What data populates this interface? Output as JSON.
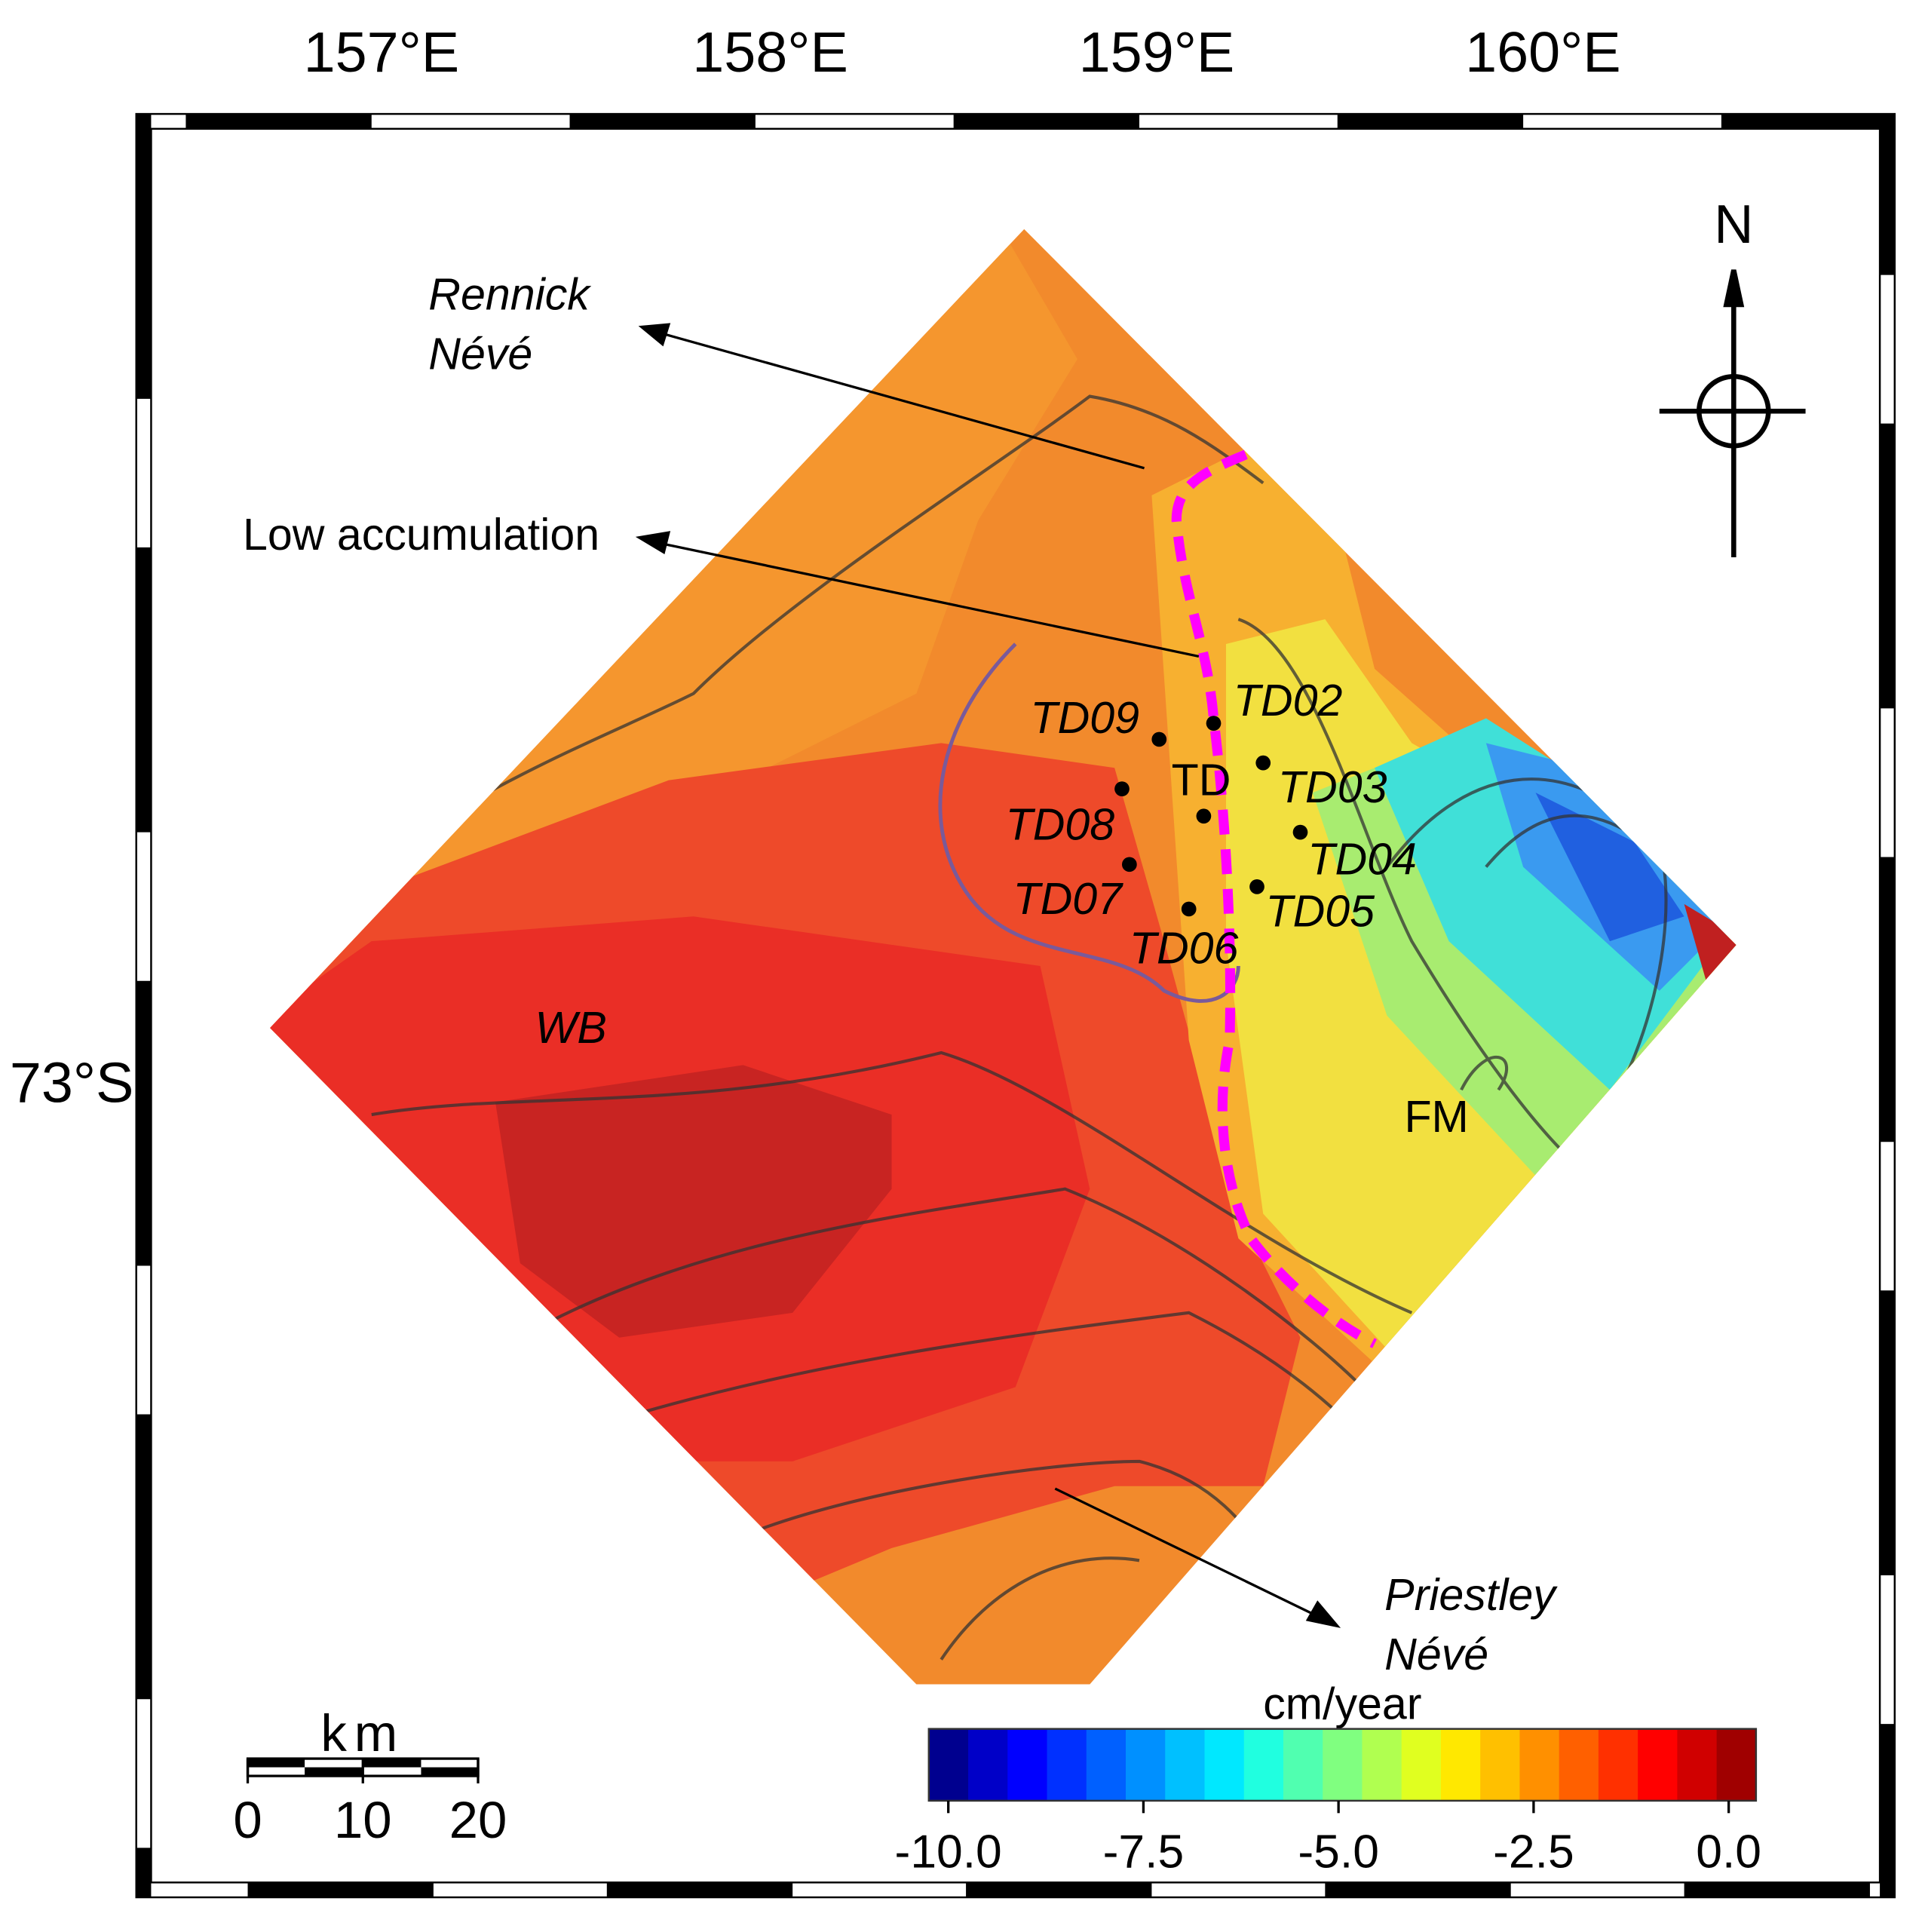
{
  "map": {
    "lon_labels": [
      "157°E",
      "158°E",
      "159°E",
      "160°E"
    ],
    "lat_labels": [
      "73°S"
    ],
    "north_arrow": "N",
    "places": {
      "rennick": [
        "Rennick",
        "Névé"
      ],
      "low_accumulation": "Low accumulation",
      "wb": "WB",
      "fm": "FM",
      "priestley": [
        "Priestley",
        "Névé"
      ]
    },
    "stations": [
      "TD02",
      "TD03",
      "TD04",
      "TD05",
      "TD06",
      "TD07",
      "TD08",
      "TD09"
    ],
    "center_station": "TD",
    "scale_bar": {
      "unit": "km",
      "range": [
        0,
        20
      ],
      "ticks": [
        0,
        10,
        20
      ]
    },
    "colorbar": {
      "title": "cm/year",
      "range": [
        -10.25,
        0.35
      ],
      "ticks": [
        {
          "value": -10,
          "label": "-10.0"
        },
        {
          "value": -7.5,
          "label": "-7.5"
        },
        {
          "value": -5,
          "label": "-5.0"
        },
        {
          "value": -2.5,
          "label": "-2.5"
        },
        {
          "value": 0,
          "label": "0.0"
        }
      ],
      "colors": [
        "#00008f",
        "#0000c8",
        "#0000ff",
        "#0030ff",
        "#0060ff",
        "#0090ff",
        "#00c0ff",
        "#00e8ff",
        "#20ffe0",
        "#50ffb0",
        "#80ff80",
        "#b0ff50",
        "#e0ff20",
        "#ffe800",
        "#ffc000",
        "#ff9000",
        "#ff6000",
        "#ff3000",
        "#ff0000",
        "#d00000",
        "#a00000"
      ]
    }
  }
}
